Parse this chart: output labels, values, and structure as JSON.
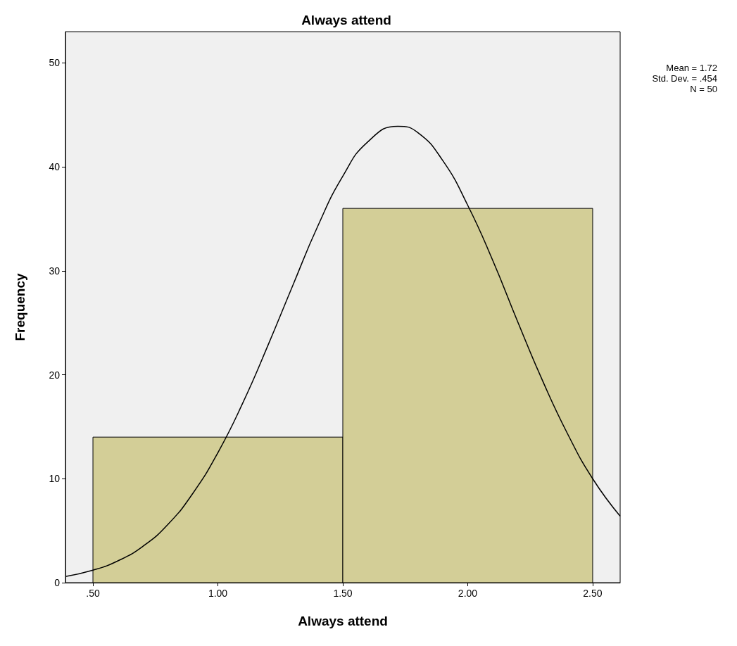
{
  "chart_data": {
    "type": "histogram",
    "title": "Always attend",
    "xlabel": "Always attend",
    "ylabel": "Frequency",
    "bins": [
      0.5,
      1.5,
      2.5
    ],
    "values": [
      14,
      36
    ],
    "color": "#d3ce97",
    "series": [
      {
        "type": "line",
        "color": "#000000",
        "x": [
          0.39,
          0.5,
          0.6,
          0.7,
          0.8,
          0.9,
          1.0,
          1.1,
          1.2,
          1.3,
          1.4,
          1.5,
          1.6,
          1.72,
          1.8,
          1.9,
          2.0,
          2.1,
          2.2,
          2.3,
          2.4,
          2.5,
          2.61
        ],
        "values": [
          0.6,
          1.2,
          2.1,
          3.5,
          5.6,
          8.6,
          12.5,
          17.3,
          22.8,
          28.6,
          34.3,
          39.1,
          42.4,
          43.9,
          43.3,
          40.6,
          36.3,
          31.0,
          25.1,
          19.4,
          14.3,
          10.0,
          6.4
        ]
      }
    ],
    "xlim": [
      0.39,
      2.61
    ],
    "xticks": [
      {
        "value": 0.5,
        "label": ".50"
      },
      {
        "value": 1.0,
        "label": "1.00"
      },
      {
        "value": 1.5,
        "label": "1.50"
      },
      {
        "value": 2.0,
        "label": "2.00"
      },
      {
        "value": 2.5,
        "label": "2.50"
      }
    ],
    "ylim": [
      0,
      53
    ],
    "yticks": [
      0,
      10,
      20,
      30,
      40,
      50
    ],
    "annotations": [
      "Mean = 1.72",
      "Std. Dev. = .454",
      "N = 50"
    ],
    "grid": false,
    "marker": "none",
    "line_style": "solid"
  }
}
